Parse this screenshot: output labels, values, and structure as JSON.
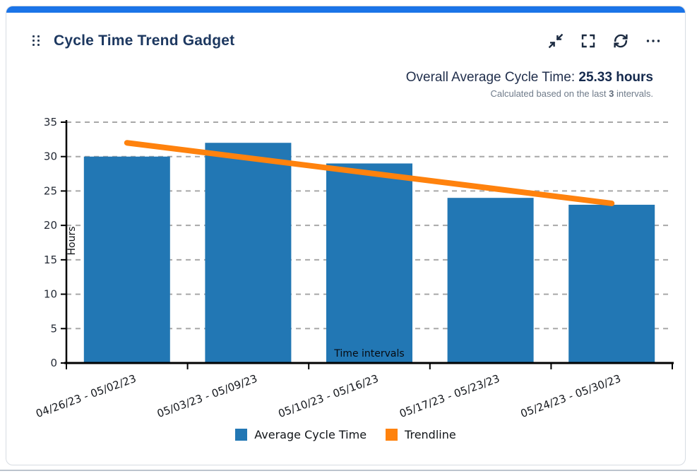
{
  "header": {
    "title": "Cycle Time Trend Gadget",
    "accent_color": "#1b74e8",
    "icon_color": "#1c2b41",
    "actions": [
      {
        "name": "collapse",
        "icon": "collapse-icon"
      },
      {
        "name": "fullscreen",
        "icon": "fullscreen-icon"
      },
      {
        "name": "refresh",
        "icon": "refresh-icon"
      },
      {
        "name": "more",
        "icon": "ellipsis-icon"
      }
    ]
  },
  "summary": {
    "label": "Overall Average Cycle Time: ",
    "value": "25.33 hours",
    "note_prefix": "Calculated based on the last ",
    "note_bold": "3",
    "note_suffix": " intervals."
  },
  "chart_data": {
    "type": "bar",
    "categories": [
      "04/26/23 - 05/02/23",
      "05/03/23 - 05/09/23",
      "05/10/23 - 05/16/23",
      "05/17/23 - 05/23/23",
      "05/24/23 - 05/30/23"
    ],
    "series": [
      {
        "name": "Average Cycle Time",
        "type": "bar",
        "color": "#2277b4",
        "values": [
          30,
          32,
          29,
          24,
          23
        ]
      },
      {
        "name": "Trendline",
        "type": "line",
        "color": "#ff820d",
        "values": [
          32,
          29.8,
          27.6,
          25.4,
          23.2
        ]
      }
    ],
    "title": "",
    "xlabel": "Time intervals",
    "ylabel": "Hours",
    "ylim": [
      0,
      35
    ],
    "ytick_step": 5,
    "grid": true,
    "grid_style": "dashed",
    "legend_position": "bottom"
  },
  "legend": {
    "items": [
      {
        "label": "Average Cycle Time",
        "color": "#2277b4"
      },
      {
        "label": "Trendline",
        "color": "#ff820d"
      }
    ]
  }
}
